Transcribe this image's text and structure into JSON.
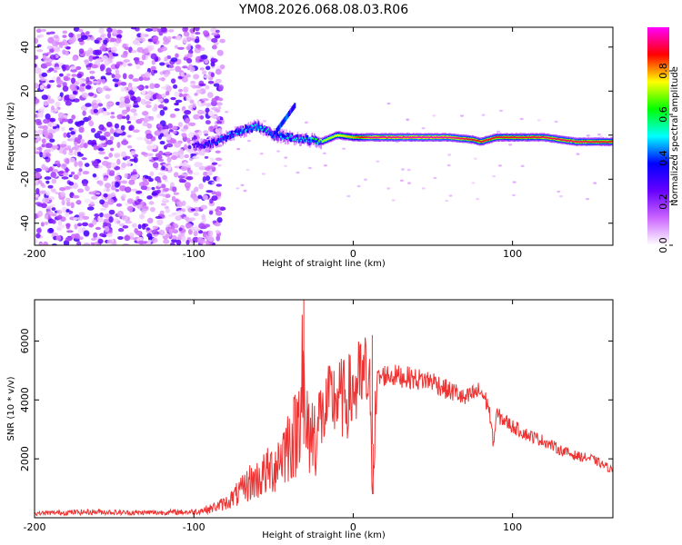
{
  "page_title": "YM08.2026.068.08.03.R06",
  "chart_data": [
    {
      "type": "heatmap",
      "title": "YM08.2026.068.08.03.R06",
      "xlabel": "Height of straight line (km)",
      "ylabel": "Frequency (Hz)",
      "xlim": [
        -200,
        163
      ],
      "ylim": [
        -50,
        49
      ],
      "xticks": [
        -200,
        -100,
        0,
        100
      ],
      "yticks": [
        -40,
        -20,
        0,
        20,
        40
      ],
      "colorbar": {
        "label": "Normalized spectral amplitude",
        "range": [
          0,
          1
        ],
        "ticks": [
          "0.0",
          "0.2",
          "0.4",
          "0.6",
          "0.8"
        ],
        "colors": [
          "#ffffff",
          "#cc66ff",
          "#6600ff",
          "#0000ff",
          "#00ffff",
          "#00ff00",
          "#ffff00",
          "#ff0000",
          "#ff00ff"
        ]
      },
      "ridge": {
        "x": [
          -100,
          -90,
          -80,
          -70,
          -60,
          -50,
          -40,
          -30,
          -20,
          -10,
          0,
          10,
          20,
          40,
          60,
          75,
          80,
          90,
          100,
          120,
          140,
          163
        ],
        "freq": [
          -5,
          -4,
          -1,
          2,
          4,
          0,
          -1,
          -2,
          -3,
          0,
          -1,
          -1,
          -1,
          -1,
          -1,
          -2,
          -3,
          -1,
          -1,
          -1,
          -3,
          -3
        ],
        "amplitude": [
          0.35,
          0.4,
          0.45,
          0.5,
          0.55,
          0.5,
          0.5,
          0.55,
          0.7,
          0.75,
          0.8,
          0.95,
          0.95,
          0.97,
          0.96,
          0.9,
          0.9,
          0.9,
          0.9,
          0.92,
          0.92,
          0.9
        ]
      },
      "noise_region": {
        "x_from": -200,
        "x_to": -90,
        "amplitude_range": [
          0.05,
          0.3
        ]
      }
    },
    {
      "type": "line",
      "xlabel": "Height of straight line (km)",
      "ylabel": "SNR (10 * v/v)",
      "xlim": [
        -200,
        163
      ],
      "ylim": [
        0,
        7400
      ],
      "xticks": [
        -200,
        -100,
        0,
        100
      ],
      "yticks": [
        2000,
        4000,
        6000
      ],
      "series": [
        {
          "name": "SNR",
          "color": "#ee3333",
          "x": [
            -200,
            -180,
            -160,
            -140,
            -120,
            -100,
            -90,
            -80,
            -75,
            -70,
            -65,
            -60,
            -55,
            -50,
            -45,
            -40,
            -35,
            -32,
            -30,
            -28,
            -25,
            -20,
            -15,
            -10,
            -5,
            0,
            5,
            10,
            12,
            15,
            20,
            30,
            40,
            50,
            60,
            65,
            70,
            75,
            80,
            85,
            88,
            90,
            95,
            100,
            110,
            120,
            130,
            140,
            150,
            160,
            163
          ],
          "y": [
            150,
            180,
            200,
            170,
            180,
            200,
            300,
            500,
            700,
            900,
            1200,
            1300,
            1500,
            1700,
            2200,
            2600,
            2900,
            5600,
            2700,
            3000,
            2800,
            3300,
            3900,
            4100,
            4000,
            4300,
            4600,
            4800,
            1000,
            4700,
            4850,
            4800,
            4700,
            4650,
            4300,
            4250,
            4000,
            4200,
            4300,
            3800,
            2500,
            3500,
            3300,
            3100,
            2800,
            2600,
            2300,
            2100,
            2000,
            1700,
            1600
          ]
        }
      ],
      "peaks": [
        {
          "x": -31,
          "y": 7400
        },
        {
          "x": 12,
          "y": 6200
        },
        {
          "x": 12.5,
          "y": 800
        }
      ]
    }
  ]
}
